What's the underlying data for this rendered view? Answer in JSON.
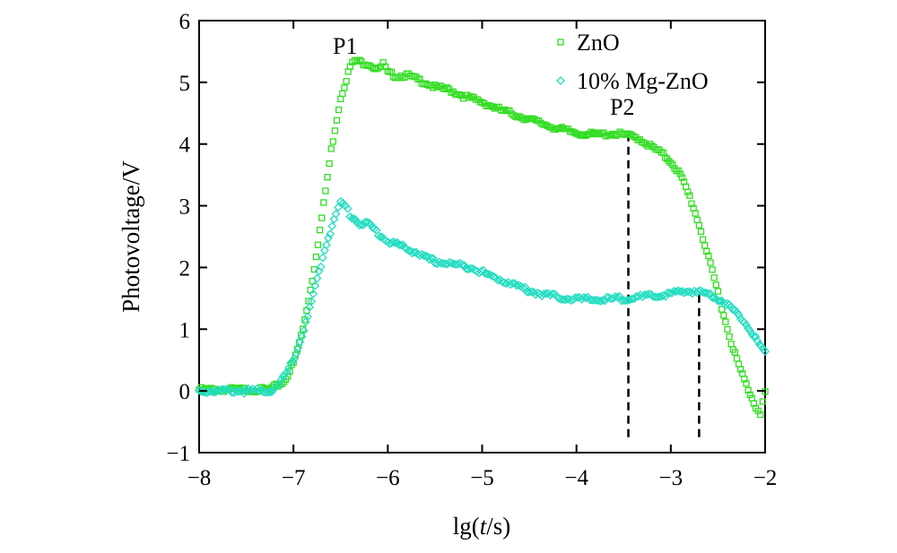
{
  "chart_data": {
    "type": "scatter",
    "title": "",
    "xlabel": "lg(t/s)",
    "xlabel_parts": {
      "prefix": "lg(",
      "italic": "t",
      "suffix": "/s)"
    },
    "ylabel": "Photovoltage/V",
    "xlim": [
      -8,
      -2
    ],
    "ylim": [
      -1,
      6
    ],
    "xticks": [
      -8,
      -7,
      -6,
      -5,
      -4,
      -3,
      -2
    ],
    "yticks": [
      -1,
      0,
      1,
      2,
      3,
      4,
      5,
      6
    ],
    "xtick_labels": [
      "−8",
      "−7",
      "−6",
      "−5",
      "−4",
      "−3",
      "−2"
    ],
    "ytick_labels": [
      "−1",
      "0",
      "1",
      "2",
      "3",
      "4",
      "5",
      "6"
    ],
    "grid": false,
    "legend_position": "top-right",
    "series": [
      {
        "name": "ZnO",
        "marker": "square",
        "color": "#33dd22",
        "points": [
          [
            -8.0,
            0.02
          ],
          [
            -7.5,
            0.02
          ],
          [
            -7.25,
            0.02
          ],
          [
            -7.1,
            0.15
          ],
          [
            -7.0,
            0.45
          ],
          [
            -6.9,
            1.0
          ],
          [
            -6.8,
            1.8
          ],
          [
            -6.7,
            2.8
          ],
          [
            -6.6,
            3.9
          ],
          [
            -6.5,
            4.75
          ],
          [
            -6.4,
            5.25
          ],
          [
            -6.35,
            5.35
          ],
          [
            -6.3,
            5.33
          ],
          [
            -6.2,
            5.3
          ],
          [
            -6.1,
            5.2
          ],
          [
            -6.05,
            5.3
          ],
          [
            -6.0,
            5.15
          ],
          [
            -5.9,
            5.1
          ],
          [
            -5.8,
            5.12
          ],
          [
            -5.7,
            5.05
          ],
          [
            -5.6,
            5.0
          ],
          [
            -5.5,
            4.92
          ],
          [
            -5.35,
            4.88
          ],
          [
            -5.2,
            4.78
          ],
          [
            -5.0,
            4.68
          ],
          [
            -4.8,
            4.55
          ],
          [
            -4.6,
            4.45
          ],
          [
            -4.4,
            4.35
          ],
          [
            -4.2,
            4.25
          ],
          [
            -4.0,
            4.18
          ],
          [
            -3.8,
            4.15
          ],
          [
            -3.6,
            4.17
          ],
          [
            -3.5,
            4.15
          ],
          [
            -3.35,
            4.1
          ],
          [
            -3.2,
            3.95
          ],
          [
            -3.1,
            3.85
          ],
          [
            -3.0,
            3.72
          ],
          [
            -2.9,
            3.5
          ],
          [
            -2.8,
            3.15
          ],
          [
            -2.7,
            2.7
          ],
          [
            -2.6,
            2.15
          ],
          [
            -2.5,
            1.6
          ],
          [
            -2.4,
            1.0
          ],
          [
            -2.3,
            0.5
          ],
          [
            -2.2,
            0.1
          ],
          [
            -2.1,
            -0.25
          ],
          [
            -2.05,
            -0.35
          ],
          [
            -2.0,
            -0.02
          ]
        ]
      },
      {
        "name": "10% Mg-ZnO",
        "marker": "diamond",
        "color": "#22ddc0",
        "points": [
          [
            -8.0,
            0.0
          ],
          [
            -7.5,
            0.0
          ],
          [
            -7.25,
            0.0
          ],
          [
            -7.15,
            0.1
          ],
          [
            -7.05,
            0.35
          ],
          [
            -6.95,
            0.7
          ],
          [
            -6.85,
            1.2
          ],
          [
            -6.75,
            1.8
          ],
          [
            -6.65,
            2.4
          ],
          [
            -6.55,
            2.85
          ],
          [
            -6.5,
            3.05
          ],
          [
            -6.45,
            3.0
          ],
          [
            -6.4,
            2.85
          ],
          [
            -6.3,
            2.72
          ],
          [
            -6.2,
            2.7
          ],
          [
            -6.1,
            2.55
          ],
          [
            -6.0,
            2.42
          ],
          [
            -5.9,
            2.38
          ],
          [
            -5.8,
            2.3
          ],
          [
            -5.7,
            2.25
          ],
          [
            -5.6,
            2.15
          ],
          [
            -5.5,
            2.1
          ],
          [
            -5.3,
            2.05
          ],
          [
            -5.1,
            2.0
          ],
          [
            -4.9,
            1.85
          ],
          [
            -4.7,
            1.75
          ],
          [
            -4.5,
            1.62
          ],
          [
            -4.3,
            1.55
          ],
          [
            -4.1,
            1.5
          ],
          [
            -3.9,
            1.48
          ],
          [
            -3.7,
            1.48
          ],
          [
            -3.5,
            1.5
          ],
          [
            -3.3,
            1.52
          ],
          [
            -3.1,
            1.55
          ],
          [
            -2.9,
            1.6
          ],
          [
            -2.75,
            1.62
          ],
          [
            -2.6,
            1.57
          ],
          [
            -2.5,
            1.5
          ],
          [
            -2.4,
            1.4
          ],
          [
            -2.3,
            1.25
          ],
          [
            -2.2,
            1.1
          ],
          [
            -2.1,
            0.85
          ],
          [
            -2.0,
            0.6
          ]
        ]
      }
    ],
    "annotations": [
      {
        "text": "P1",
        "x": -6.35,
        "y": 5.35
      },
      {
        "text": "P2",
        "x": -3.45,
        "y": 4.15
      }
    ],
    "reference_lines": [
      {
        "x": -3.45,
        "y_from": -0.75,
        "y_to": 4.15
      },
      {
        "x": -2.7,
        "y_from": -0.75,
        "y_to": 1.6
      }
    ]
  }
}
